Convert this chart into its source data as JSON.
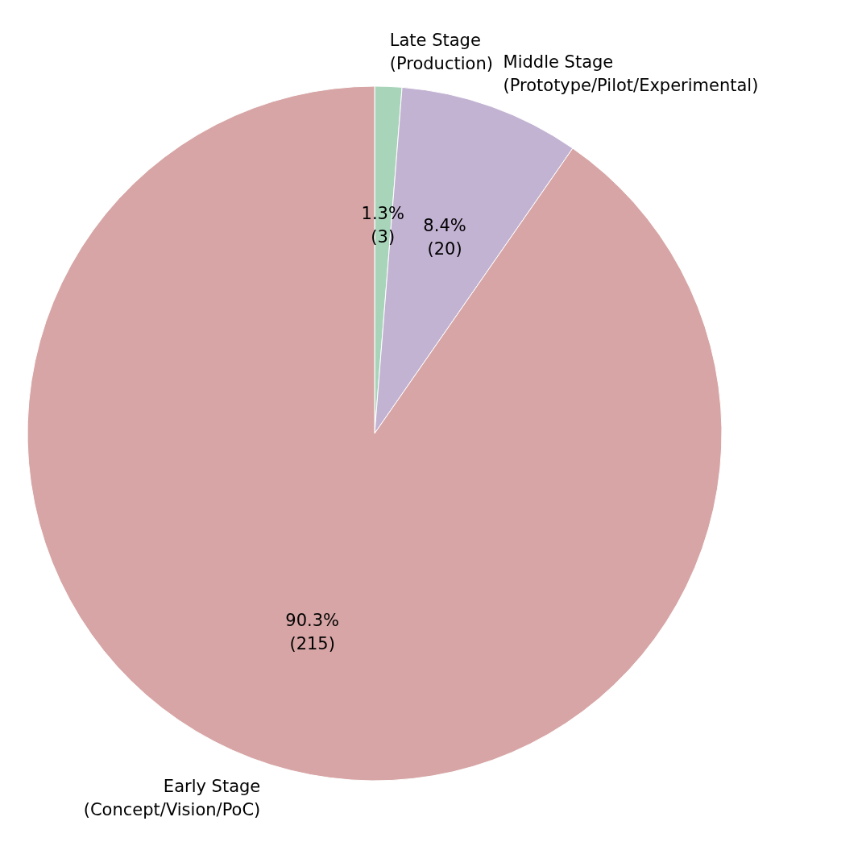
{
  "chart_data": {
    "type": "pie",
    "categories": [
      "Late Stage\n(Production)",
      "Middle Stage\n(Prototype/Pilot/Experimental)",
      "Early Stage\n(Concept/Vision/PoC)"
    ],
    "values": [
      3,
      20,
      215
    ],
    "colors": [
      "#a8d5ba",
      "#c3b3d3",
      "#d7a5a5"
    ],
    "value_labels": [
      "1.3%\n(3)",
      "8.4%\n(20)",
      "90.3%\n(215)"
    ]
  }
}
